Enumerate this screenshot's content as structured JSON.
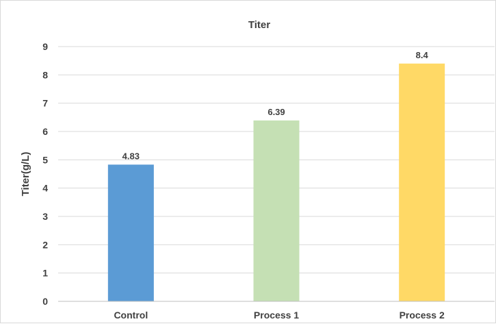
{
  "chart_data": {
    "type": "bar",
    "title": "Titer",
    "xlabel": "",
    "ylabel": "Titer(g/L)",
    "categories": [
      "Control",
      "Process 1",
      "Process 2"
    ],
    "values": [
      4.83,
      6.39,
      8.4
    ],
    "value_labels": [
      "4.83",
      "6.39",
      "8.4"
    ],
    "colors": [
      "#5b9bd5",
      "#c5e0b4",
      "#ffd966"
    ],
    "ylim": [
      0,
      9
    ],
    "yticks": [
      0,
      1,
      2,
      3,
      4,
      5,
      6,
      7,
      8,
      9
    ],
    "grid": true,
    "legend": "none"
  }
}
